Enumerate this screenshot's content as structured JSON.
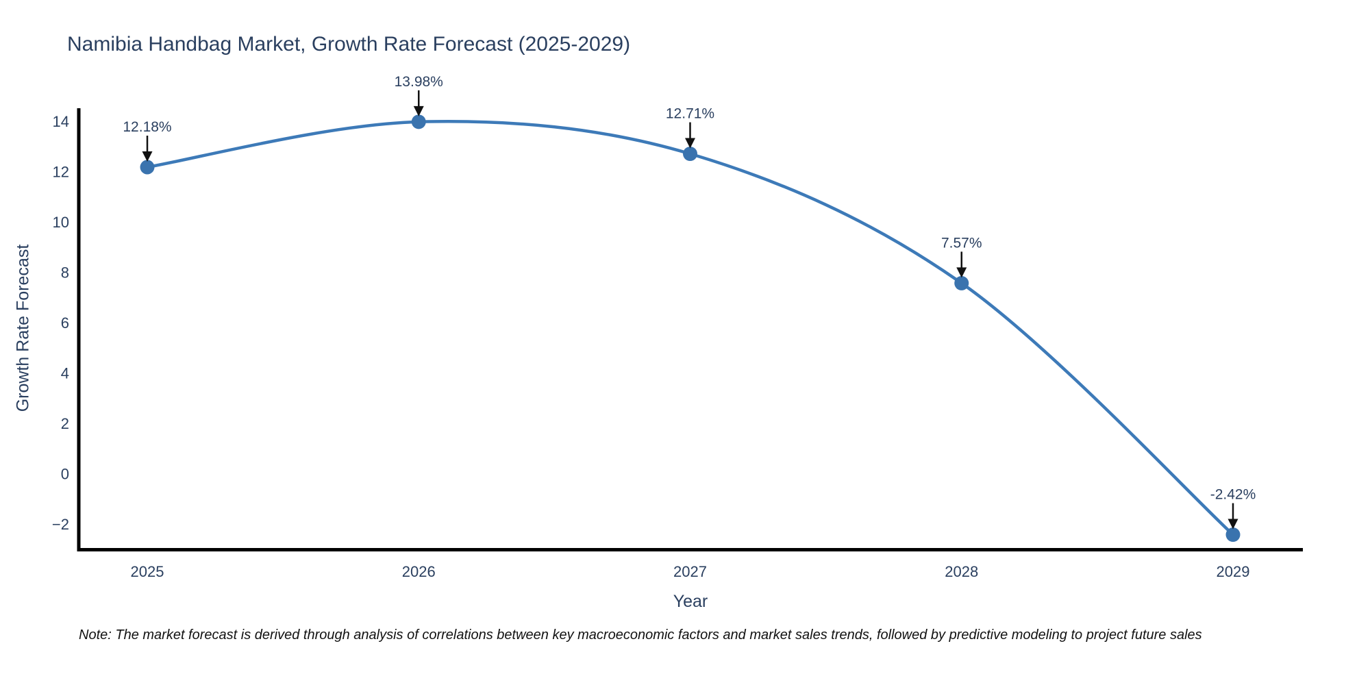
{
  "title": "Namibia Handbag Market, Growth Rate Forecast (2025-2029)",
  "note": "Note: The market forecast is derived through analysis of correlations between key macroeconomic factors and market sales trends, followed by predictive modeling to project future sales",
  "chart_data": {
    "type": "line",
    "title": "Namibia Handbag Market, Growth Rate Forecast (2025-2029)",
    "xlabel": "Year",
    "ylabel": "Growth Rate Forecast",
    "x": [
      2025,
      2026,
      2027,
      2028,
      2029
    ],
    "values": [
      12.18,
      13.98,
      12.71,
      7.57,
      -2.42
    ],
    "point_labels": [
      "12.18%",
      "13.98%",
      "12.71%",
      "7.57%",
      "-2.42%"
    ],
    "x_tick_labels": [
      "2025",
      "2026",
      "2027",
      "2028",
      "2029"
    ],
    "y_tick_values": [
      14,
      12,
      10,
      8,
      6,
      4,
      2,
      0,
      -2
    ],
    "y_tick_labels": [
      "14",
      "12",
      "10",
      "8",
      "6",
      "4",
      "2",
      "0",
      "−2"
    ],
    "ylim": [
      -2.95,
      14.52
    ],
    "grid": false,
    "legend": "none",
    "line_shape": "spline",
    "annotation_arrows": "down",
    "colors": {
      "line": "#3d7ab8",
      "marker": "#3a73ae",
      "axis": "#000000",
      "text": "#2a3f5f",
      "arrow": "#111111",
      "note_text": "#111111",
      "background": "#ffffff"
    }
  }
}
